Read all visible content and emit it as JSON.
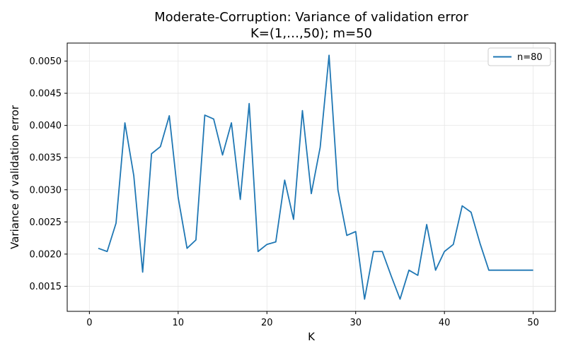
{
  "chart_data": {
    "type": "line",
    "title_line1": "Moderate-Corruption: Variance of validation error",
    "title_line2": "K=(1,…,50); m=50",
    "xlabel": "K",
    "ylabel": "Variance of validation error",
    "xlim": [
      -2.5,
      52.5
    ],
    "ylim": [
      0.00111,
      0.00528
    ],
    "xticks": [
      0,
      10,
      20,
      30,
      40,
      50
    ],
    "xtick_labels": [
      "0",
      "10",
      "20",
      "30",
      "40",
      "50"
    ],
    "yticks": [
      0.0015,
      0.002,
      0.0025,
      0.003,
      0.0035,
      0.004,
      0.0045,
      0.005
    ],
    "ytick_labels": [
      "0.0015",
      "0.0020",
      "0.0025",
      "0.0030",
      "0.0035",
      "0.0040",
      "0.0045",
      "0.0050"
    ],
    "grid": true,
    "legend_position": "top-right",
    "line_color": "#1f77b4",
    "series": [
      {
        "name": "n=80",
        "x": [
          1,
          2,
          3,
          4,
          5,
          6,
          7,
          8,
          9,
          10,
          11,
          12,
          13,
          14,
          15,
          16,
          17,
          18,
          19,
          20,
          21,
          22,
          23,
          24,
          25,
          26,
          27,
          28,
          29,
          30,
          31,
          32,
          33,
          34,
          35,
          36,
          37,
          38,
          39,
          40,
          41,
          42,
          43,
          44,
          45,
          46,
          47,
          48,
          49,
          50
        ],
        "values": [
          0.00209,
          0.00204,
          0.00248,
          0.00404,
          0.00322,
          0.00172,
          0.00356,
          0.00367,
          0.00415,
          0.00288,
          0.00209,
          0.00222,
          0.00416,
          0.0041,
          0.00354,
          0.00404,
          0.00285,
          0.00434,
          0.00204,
          0.00215,
          0.00219,
          0.00315,
          0.00254,
          0.00423,
          0.00294,
          0.00366,
          0.00509,
          0.003,
          0.00229,
          0.00235,
          0.0013,
          0.00204,
          0.00204,
          0.00166,
          0.0013,
          0.00175,
          0.00167,
          0.00246,
          0.00175,
          0.00204,
          0.00215,
          0.00275,
          0.00265,
          0.00217,
          0.00175,
          0.00175,
          0.00175,
          0.00175,
          0.00175,
          0.00175
        ]
      }
    ]
  }
}
